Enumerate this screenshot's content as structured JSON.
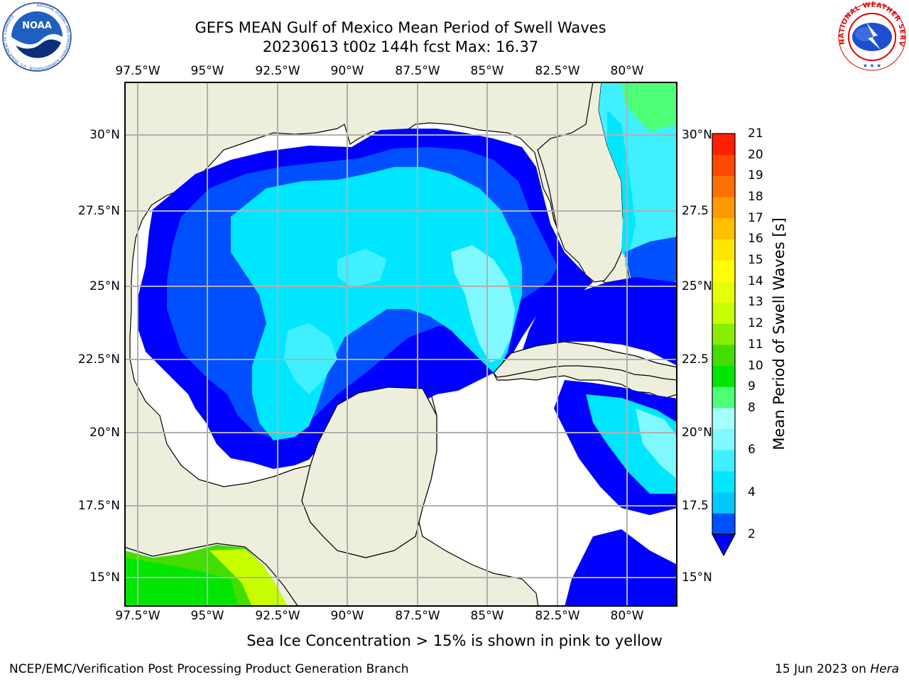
{
  "header": {
    "title_line1": "GEFS MEAN Gulf of Mexico Mean Period of Swell Waves",
    "title_line2": "20230613 t00z 144h fcst   Max: 16.37"
  },
  "logos": {
    "noaa": {
      "text": "NOAA",
      "ring_text": "NATIONAL OCEANIC AND ATMOSPHERIC ADMINISTRATION · U.S. DEPARTMENT OF COMMERCE"
    },
    "nws": {
      "ring_text": "NATIONAL WEATHER SERVICE"
    }
  },
  "map": {
    "lon_ticks": [
      "97.5°W",
      "95°W",
      "92.5°W",
      "90°W",
      "87.5°W",
      "85°W",
      "82.5°W",
      "80°W"
    ],
    "lat_ticks_left": [
      "30°N",
      "27.5°N",
      "25°N",
      "22.5°N",
      "20°N",
      "17.5°N",
      "15°N"
    ],
    "lat_ticks_right": [
      "30°N",
      "27.5",
      "25°N",
      "22.5",
      "20°N",
      "17.5",
      "15°N"
    ],
    "colors": {
      "land": "#eeeedd",
      "ocean_masked": "#ffffff",
      "grid": "#b0b0b0"
    }
  },
  "colorbar": {
    "label": "Mean Period of Swell Waves [s]",
    "ticks": [
      "21",
      "20",
      "19",
      "18",
      "17",
      "16",
      "15",
      "14",
      "13",
      "12",
      "11",
      "10",
      "9",
      "8",
      "7",
      "6",
      "5",
      "4",
      "3",
      "2"
    ],
    "tick_labels_shown": [
      "21",
      "20",
      "19",
      "18",
      "17",
      "16",
      "15",
      "14",
      "13",
      "12",
      "11",
      "10",
      "9",
      "8",
      "6",
      "4",
      "2"
    ],
    "min": 2,
    "max": 21,
    "extend": "min",
    "colors": [
      "#0050ff",
      "#00c8ff",
      "#00e6ff",
      "#40f0ff",
      "#7ff8ff",
      "#a6ffff",
      "#4dff77",
      "#00e600",
      "#44dd00",
      "#88ee00",
      "#c8ff00",
      "#e8ff00",
      "#ffff00",
      "#ffe600",
      "#ffc000",
      "#ff9900",
      "#ff7000",
      "#ff4a00",
      "#ff2000",
      "#ff0000"
    ],
    "extend_color": "#0000ff"
  },
  "notes": {
    "ice": "Sea Ice Concentration > 15% is shown in pink to yellow"
  },
  "footer": {
    "left": "NCEP/EMC/Verification Post Processing Product Generation Branch",
    "date": "15 Jun 2023 on ",
    "machine": "Hera"
  }
}
